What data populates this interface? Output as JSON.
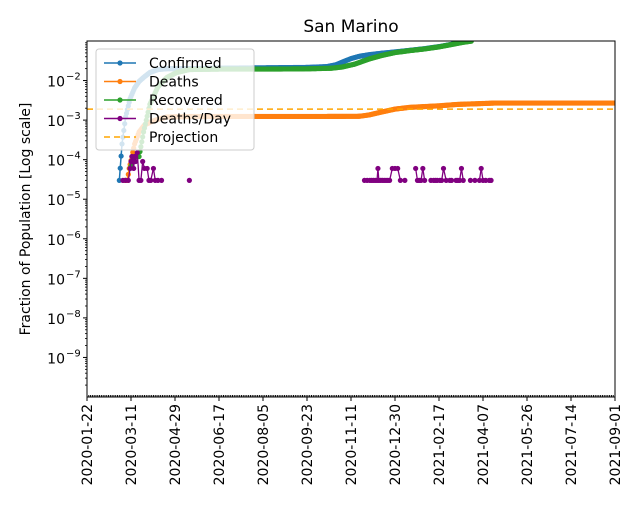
{
  "chart_data": {
    "type": "line",
    "title": "San Marino",
    "xlabel": "",
    "ylabel": "Fraction of Population [Log scale]",
    "yscale": "log",
    "ylim": [
      1e-10,
      0.1
    ],
    "xlim": [
      "2020-01-22",
      "2021-09-01"
    ],
    "x_ticks": [
      "2020-01-22",
      "2020-03-11",
      "2020-04-29",
      "2020-06-17",
      "2020-08-05",
      "2020-09-23",
      "2020-11-11",
      "2020-12-30",
      "2021-02-17",
      "2021-04-07",
      "2021-05-26",
      "2021-07-14",
      "2021-09-01"
    ],
    "y_ticks": [
      {
        "value": 1e-09,
        "base": "10",
        "exp": "−9"
      },
      {
        "value": 1e-08,
        "base": "10",
        "exp": "−8"
      },
      {
        "value": 1e-07,
        "base": "10",
        "exp": "−7"
      },
      {
        "value": 1e-06,
        "base": "10",
        "exp": "−6"
      },
      {
        "value": 1e-05,
        "base": "10",
        "exp": "−5"
      },
      {
        "value": 0.0001,
        "base": "10",
        "exp": "−4"
      },
      {
        "value": 0.001,
        "base": "10",
        "exp": "−3"
      },
      {
        "value": 0.01,
        "base": "10",
        "exp": "−2"
      }
    ],
    "legend_position": "top-left",
    "grid": false,
    "series": [
      {
        "name": "Confirmed",
        "color": "#1f77b4",
        "style": "line-dots",
        "points": [
          [
            "2020-02-27",
            3e-05
          ],
          [
            "2020-03-01",
            0.00025
          ],
          [
            "2020-03-05",
            0.0012
          ],
          [
            "2020-03-10",
            0.0035
          ],
          [
            "2020-03-15",
            0.0065
          ],
          [
            "2020-03-20",
            0.0095
          ],
          [
            "2020-03-25",
            0.012
          ],
          [
            "2020-04-01",
            0.016
          ],
          [
            "2020-04-10",
            0.019
          ],
          [
            "2020-04-20",
            0.02
          ],
          [
            "2020-05-10",
            0.02
          ],
          [
            "2020-06-17",
            0.0205
          ],
          [
            "2020-08-05",
            0.021
          ],
          [
            "2020-09-23",
            0.0215
          ],
          [
            "2020-10-15",
            0.0225
          ],
          [
            "2020-10-25",
            0.025
          ],
          [
            "2020-11-01",
            0.029
          ],
          [
            "2020-11-11",
            0.036
          ],
          [
            "2020-11-20",
            0.041
          ],
          [
            "2020-12-01",
            0.045
          ],
          [
            "2020-12-15",
            0.049
          ],
          [
            "2020-12-30",
            0.053
          ],
          [
            "2021-01-15",
            0.058
          ],
          [
            "2021-02-01",
            0.064
          ],
          [
            "2021-02-17",
            0.072
          ],
          [
            "2021-03-01",
            0.081
          ],
          [
            "2021-03-10",
            0.09
          ],
          [
            "2021-03-20",
            0.099
          ]
        ]
      },
      {
        "name": "Deaths",
        "color": "#ff7f0e",
        "style": "line-dots",
        "points": [
          [
            "2020-03-04",
            3e-05
          ],
          [
            "2020-03-07",
            3e-05
          ],
          [
            "2020-03-09",
            6e-05
          ],
          [
            "2020-03-12",
            0.00012
          ],
          [
            "2020-03-15",
            0.00025
          ],
          [
            "2020-03-20",
            0.0005
          ],
          [
            "2020-03-26",
            0.00075
          ],
          [
            "2020-04-02",
            0.0009
          ],
          [
            "2020-04-10",
            0.00105
          ],
          [
            "2020-04-20",
            0.0012
          ],
          [
            "2020-05-10",
            0.00123
          ],
          [
            "2020-06-17",
            0.00124
          ],
          [
            "2020-08-05",
            0.00124
          ],
          [
            "2020-10-15",
            0.00124
          ],
          [
            "2020-11-20",
            0.00125
          ],
          [
            "2020-12-01",
            0.00135
          ],
          [
            "2020-12-15",
            0.0016
          ],
          [
            "2020-12-30",
            0.0019
          ],
          [
            "2021-01-15",
            0.0021
          ],
          [
            "2021-02-01",
            0.0022
          ],
          [
            "2021-02-17",
            0.0023
          ],
          [
            "2021-03-10",
            0.0025
          ],
          [
            "2021-04-01",
            0.0026
          ],
          [
            "2021-04-20",
            0.0027
          ],
          [
            "2021-06-01",
            0.0027
          ],
          [
            "2021-09-01",
            0.0027
          ]
        ]
      },
      {
        "name": "Recovered",
        "color": "#2ca02c",
        "style": "line-dots",
        "points": [
          [
            "2020-03-10",
            6e-05
          ],
          [
            "2020-03-15",
            0.00012
          ],
          [
            "2020-03-20",
            0.00012
          ],
          [
            "2020-03-25",
            0.0005
          ],
          [
            "2020-04-01",
            0.0025
          ],
          [
            "2020-04-10",
            0.007
          ],
          [
            "2020-04-20",
            0.012
          ],
          [
            "2020-05-01",
            0.016
          ],
          [
            "2020-05-15",
            0.019
          ],
          [
            "2020-06-17",
            0.0195
          ],
          [
            "2020-08-05",
            0.0195
          ],
          [
            "2020-09-23",
            0.0198
          ],
          [
            "2020-10-20",
            0.0205
          ],
          [
            "2020-11-01",
            0.022
          ],
          [
            "2020-11-15",
            0.026
          ],
          [
            "2020-12-01",
            0.035
          ],
          [
            "2020-12-15",
            0.043
          ],
          [
            "2020-12-30",
            0.051
          ],
          [
            "2021-01-15",
            0.057
          ],
          [
            "2021-02-01",
            0.063
          ],
          [
            "2021-02-17",
            0.071
          ],
          [
            "2021-03-01",
            0.08
          ],
          [
            "2021-03-15",
            0.092
          ],
          [
            "2021-03-25",
            0.099
          ]
        ]
      },
      {
        "name": "Deaths/Day",
        "color": "#800080",
        "style": "dots",
        "points": [
          [
            "2020-03-02",
            3e-05
          ],
          [
            "2020-03-05",
            3e-05
          ],
          [
            "2020-03-08",
            3e-05
          ],
          [
            "2020-03-10",
            6e-05
          ],
          [
            "2020-03-11",
            9e-05
          ],
          [
            "2020-03-12",
            0.00012
          ],
          [
            "2020-03-13",
            9e-05
          ],
          [
            "2020-03-14",
            6e-05
          ],
          [
            "2020-03-15",
            0.00012
          ],
          [
            "2020-03-16",
            9e-05
          ],
          [
            "2020-03-18",
            0.00015
          ],
          [
            "2020-03-20",
            3e-05
          ],
          [
            "2020-03-22",
            3e-05
          ],
          [
            "2020-03-24",
            9e-05
          ],
          [
            "2020-03-26",
            6e-05
          ],
          [
            "2020-03-29",
            6e-05
          ],
          [
            "2020-03-31",
            3e-05
          ],
          [
            "2020-04-02",
            3e-05
          ],
          [
            "2020-04-05",
            6e-05
          ],
          [
            "2020-04-07",
            3e-05
          ],
          [
            "2020-04-10",
            3e-05
          ],
          [
            "2020-04-14",
            3e-05
          ],
          [
            "2020-05-15",
            3e-05
          ],
          [
            "2020-11-26",
            3e-05
          ],
          [
            "2020-11-29",
            3e-05
          ],
          [
            "2020-12-02",
            3e-05
          ],
          [
            "2020-12-04",
            3e-05
          ],
          [
            "2020-12-06",
            3e-05
          ],
          [
            "2020-12-08",
            3e-05
          ],
          [
            "2020-12-10",
            3e-05
          ],
          [
            "2020-12-11",
            6e-05
          ],
          [
            "2020-12-12",
            3e-05
          ],
          [
            "2020-12-14",
            3e-05
          ],
          [
            "2020-12-16",
            3e-05
          ],
          [
            "2020-12-18",
            3e-05
          ],
          [
            "2020-12-20",
            3e-05
          ],
          [
            "2020-12-22",
            3e-05
          ],
          [
            "2020-12-24",
            3e-05
          ],
          [
            "2020-12-27",
            6e-05
          ],
          [
            "2020-12-30",
            6e-05
          ],
          [
            "2021-01-02",
            6e-05
          ],
          [
            "2021-01-05",
            3e-05
          ],
          [
            "2021-01-10",
            3e-05
          ],
          [
            "2021-01-22",
            6e-05
          ],
          [
            "2021-01-24",
            3e-05
          ],
          [
            "2021-01-26",
            3e-05
          ],
          [
            "2021-01-28",
            3e-05
          ],
          [
            "2021-01-30",
            6e-05
          ],
          [
            "2021-02-01",
            3e-05
          ],
          [
            "2021-02-08",
            3e-05
          ],
          [
            "2021-02-11",
            3e-05
          ],
          [
            "2021-02-13",
            3e-05
          ],
          [
            "2021-02-15",
            3e-05
          ],
          [
            "2021-02-18",
            3e-05
          ],
          [
            "2021-02-20",
            3e-05
          ],
          [
            "2021-02-22",
            6e-05
          ],
          [
            "2021-02-25",
            3e-05
          ],
          [
            "2021-03-01",
            3e-05
          ],
          [
            "2021-03-03",
            3e-05
          ],
          [
            "2021-03-08",
            3e-05
          ],
          [
            "2021-03-10",
            3e-05
          ],
          [
            "2021-03-12",
            3e-05
          ],
          [
            "2021-03-14",
            6e-05
          ],
          [
            "2021-03-16",
            3e-05
          ],
          [
            "2021-03-24",
            3e-05
          ],
          [
            "2021-03-29",
            3e-05
          ],
          [
            "2021-04-03",
            3e-05
          ],
          [
            "2021-04-05",
            6e-05
          ],
          [
            "2021-04-07",
            3e-05
          ],
          [
            "2021-04-10",
            3e-05
          ],
          [
            "2021-04-14",
            3e-05
          ],
          [
            "2021-04-16",
            3e-05
          ]
        ]
      },
      {
        "name": "Projection",
        "color": "#ffa500",
        "style": "dashed-hline",
        "value": 0.0019
      }
    ]
  }
}
